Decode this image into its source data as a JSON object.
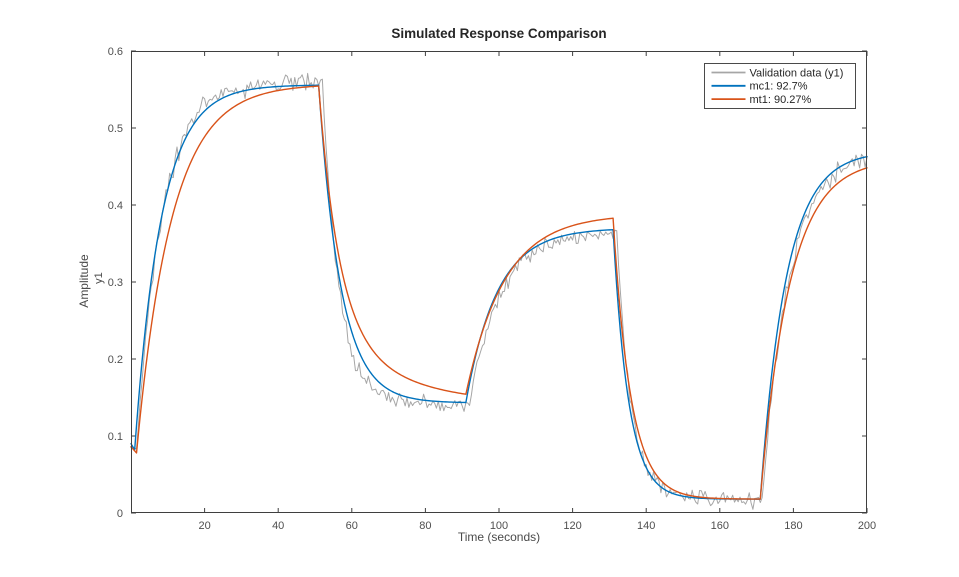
{
  "figure": {
    "title": "Simulated Response Comparison"
  },
  "chart_data": {
    "type": "line",
    "title": "Simulated Response Comparison",
    "xlabel": "Time (seconds)",
    "ylabel": "Amplitude",
    "ylabel2": "y1",
    "xlim": [
      0,
      200
    ],
    "ylim": [
      0,
      0.6
    ],
    "xticks": [
      20,
      40,
      60,
      80,
      100,
      120,
      140,
      160,
      180,
      200
    ],
    "xtick_labels": [
      "20",
      "40",
      "60",
      "80",
      "100",
      "120",
      "140",
      "160",
      "180",
      "200"
    ],
    "yticks": [
      0,
      0.1,
      0.2,
      0.3,
      0.4,
      0.5,
      0.6
    ],
    "ytick_labels": [
      "0",
      "0.1",
      "0.2",
      "0.3",
      "0.4",
      "0.5",
      "0.6"
    ],
    "grid": false,
    "box": true,
    "tick_direction": "in",
    "axis_color": "#3f3f3f",
    "tick_label_color": "#4f4f4f",
    "background_color": "#ffffff",
    "legend": {
      "position": "northeast",
      "border_color": "#4a4a4a",
      "text_color": "#262626",
      "entries": [
        {
          "label": "Validation data (y1)",
          "color": "#a6a6a6"
        },
        {
          "label": "mc1: 92.7%",
          "color": "#0072BD"
        },
        {
          "label": "mt1: 90.27%",
          "color": "#D95319"
        }
      ]
    },
    "series": [
      {
        "name": "Validation data (y1)",
        "kind": "measured-noisy",
        "color": "#a6a6a6",
        "width": 1,
        "dt": 0.5,
        "start": [
          [
            0,
            0.095
          ],
          [
            1.5,
            0.081
          ]
        ],
        "segments": [
          {
            "t1": 52,
            "target": 0.56,
            "tau": 6.8
          },
          {
            "t1": 92,
            "target": 0.14,
            "tau": 4.5
          },
          {
            "t1": 132,
            "target": 0.363,
            "tau": 8.0
          },
          {
            "t1": 171.5,
            "target": 0.018,
            "tau": 3.8
          },
          {
            "t1": 200,
            "target": 0.468,
            "tau": 7.2
          }
        ],
        "noise": {
          "sd": 0.0055,
          "seed": 987654
        }
      },
      {
        "name": "mc1: 92.7%",
        "kind": "model-fit",
        "fit_percent": 92.7,
        "color": "#0072BD",
        "width": 1.4,
        "dt": 0.5,
        "start": [
          [
            0,
            0.09
          ],
          [
            1,
            0.082
          ]
        ],
        "segments": [
          {
            "t1": 51,
            "target": 0.556,
            "tau": 7.2
          },
          {
            "t1": 91,
            "target": 0.143,
            "tau": 6.0
          },
          {
            "t1": 131,
            "target": 0.37,
            "tau": 8.5
          },
          {
            "t1": 171,
            "target": 0.018,
            "tau": 4.2
          },
          {
            "t1": 200,
            "target": 0.47,
            "tau": 7.0
          }
        ]
      },
      {
        "name": "mt1: 90.27%",
        "kind": "model-fit",
        "fit_percent": 90.27,
        "color": "#D95319",
        "width": 1.4,
        "dt": 0.5,
        "start": [
          [
            0,
            0.086
          ],
          [
            1.5,
            0.078
          ]
        ],
        "segments": [
          {
            "t1": 51,
            "target": 0.557,
            "tau": 9.5
          },
          {
            "t1": 91,
            "target": 0.14,
            "tau": 5.5,
            "tau2": 20,
            "w2": 0.25
          },
          {
            "t1": 131,
            "target": 0.388,
            "tau": 10.5
          },
          {
            "t1": 171,
            "target": 0.018,
            "tau": 4.8
          },
          {
            "t1": 200,
            "target": 0.46,
            "tau": 8.0
          }
        ]
      }
    ]
  }
}
